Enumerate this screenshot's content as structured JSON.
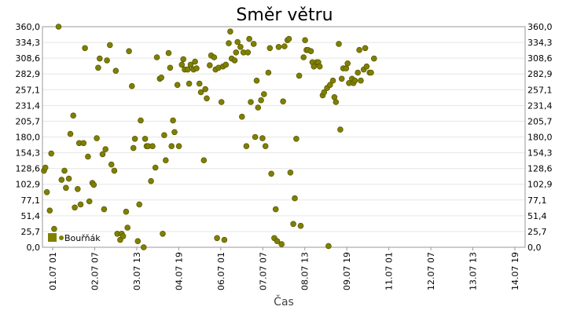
{
  "chart_data": {
    "type": "scatter",
    "title": "Směr větru",
    "xlabel": "Čas",
    "ylabel": "°",
    "ylim": [
      0,
      360
    ],
    "y_ticks": [
      "0,0",
      "25,7",
      "51,4",
      "77,1",
      "102,9",
      "128,6",
      "154,3",
      "180,0",
      "205,7",
      "231,4",
      "257,1",
      "282,9",
      "308,6",
      "334,3",
      "360,0"
    ],
    "x_ticks": [
      "01.07 01",
      "02.07 07",
      "03.07 13",
      "04.07 19",
      "06.07 01",
      "07.07 07",
      "08.07 13",
      "09.07 19",
      "11.07 01",
      "12.07 07",
      "13.07 13",
      "14.07 19"
    ],
    "xlim": [
      0,
      329
    ],
    "grid": true,
    "legend_position": "bottom-left",
    "marker_color": "#808000",
    "series": [
      {
        "name": "Bouřňák",
        "points": [
          [
            1,
            125
          ],
          [
            2,
            130
          ],
          [
            3,
            90
          ],
          [
            5,
            60
          ],
          [
            6,
            153
          ],
          [
            8,
            30
          ],
          [
            11,
            360
          ],
          [
            13,
            110
          ],
          [
            15,
            125
          ],
          [
            16,
            97
          ],
          [
            18,
            112
          ],
          [
            19,
            185
          ],
          [
            21,
            215
          ],
          [
            22,
            65
          ],
          [
            24,
            95
          ],
          [
            25,
            170
          ],
          [
            26,
            70
          ],
          [
            28,
            170
          ],
          [
            29,
            325
          ],
          [
            31,
            148
          ],
          [
            32,
            75
          ],
          [
            34,
            105
          ],
          [
            35,
            102
          ],
          [
            37,
            178
          ],
          [
            38,
            293
          ],
          [
            39,
            308
          ],
          [
            41,
            152
          ],
          [
            42,
            62
          ],
          [
            43,
            160
          ],
          [
            44,
            305
          ],
          [
            46,
            330
          ],
          [
            47,
            135
          ],
          [
            49,
            125
          ],
          [
            50,
            288
          ],
          [
            51,
            22
          ],
          [
            53,
            12
          ],
          [
            54,
            22
          ],
          [
            55,
            18
          ],
          [
            57,
            58
          ],
          [
            58,
            32
          ],
          [
            59,
            320
          ],
          [
            61,
            263
          ],
          [
            62,
            162
          ],
          [
            63,
            177
          ],
          [
            65,
            10
          ],
          [
            66,
            70
          ],
          [
            67,
            207
          ],
          [
            69,
            0
          ],
          [
            70,
            177
          ],
          [
            71,
            165
          ],
          [
            72,
            165
          ],
          [
            74,
            108
          ],
          [
            75,
            165
          ],
          [
            77,
            130
          ],
          [
            78,
            310
          ],
          [
            80,
            275
          ],
          [
            81,
            277
          ],
          [
            82,
            22
          ],
          [
            83,
            183
          ],
          [
            84,
            142
          ],
          [
            86,
            317
          ],
          [
            87,
            293
          ],
          [
            88,
            165
          ],
          [
            89,
            207
          ],
          [
            90,
            188
          ],
          [
            92,
            265
          ],
          [
            93,
            165
          ],
          [
            95,
            298
          ],
          [
            96,
            307
          ],
          [
            97,
            290
          ],
          [
            99,
            290
          ],
          [
            100,
            267
          ],
          [
            101,
            298
          ],
          [
            103,
            290
          ],
          [
            104,
            303
          ],
          [
            105,
            292
          ],
          [
            107,
            267
          ],
          [
            108,
            253
          ],
          [
            110,
            142
          ],
          [
            111,
            258
          ],
          [
            112,
            243
          ],
          [
            114,
            297
          ],
          [
            115,
            313
          ],
          [
            117,
            310
          ],
          [
            118,
            290
          ],
          [
            119,
            15
          ],
          [
            120,
            293
          ],
          [
            122,
            237
          ],
          [
            123,
            295
          ],
          [
            124,
            12
          ],
          [
            125,
            298
          ],
          [
            127,
            333
          ],
          [
            128,
            352
          ],
          [
            129,
            308
          ],
          [
            131,
            305
          ],
          [
            132,
            318
          ],
          [
            133,
            335
          ],
          [
            135,
            327
          ],
          [
            136,
            213
          ],
          [
            137,
            318
          ],
          [
            139,
            165
          ],
          [
            140,
            318
          ],
          [
            141,
            340
          ],
          [
            142,
            237
          ],
          [
            144,
            332
          ],
          [
            145,
            180
          ],
          [
            146,
            272
          ],
          [
            147,
            228
          ],
          [
            149,
            240
          ],
          [
            150,
            178
          ],
          [
            151,
            250
          ],
          [
            152,
            165
          ],
          [
            154,
            285
          ],
          [
            155,
            325
          ],
          [
            156,
            120
          ],
          [
            158,
            15
          ],
          [
            159,
            62
          ],
          [
            160,
            10
          ],
          [
            161,
            327
          ],
          [
            163,
            5
          ],
          [
            164,
            238
          ],
          [
            165,
            328
          ],
          [
            167,
            338
          ],
          [
            168,
            340
          ],
          [
            169,
            122
          ],
          [
            171,
            38
          ],
          [
            172,
            80
          ],
          [
            173,
            177
          ],
          [
            175,
            280
          ],
          [
            176,
            35
          ],
          [
            178,
            310
          ],
          [
            179,
            338
          ],
          [
            180,
            322
          ],
          [
            181,
            322
          ],
          [
            183,
            320
          ],
          [
            184,
            302
          ],
          [
            185,
            295
          ],
          [
            187,
            302
          ],
          [
            188,
            302
          ],
          [
            189,
            295
          ],
          [
            191,
            248
          ],
          [
            192,
            253
          ],
          [
            194,
            260
          ],
          [
            195,
            2
          ],
          [
            196,
            265
          ],
          [
            198,
            272
          ],
          [
            199,
            245
          ],
          [
            200,
            237
          ],
          [
            202,
            332
          ],
          [
            203,
            192
          ],
          [
            204,
            275
          ],
          [
            205,
            292
          ],
          [
            207,
            292
          ],
          [
            208,
            300
          ],
          [
            209,
            268
          ],
          [
            211,
            275
          ],
          [
            212,
            268
          ],
          [
            213,
            272
          ],
          [
            215,
            285
          ],
          [
            216,
            322
          ],
          [
            217,
            272
          ],
          [
            219,
            290
          ],
          [
            220,
            325
          ],
          [
            221,
            295
          ],
          [
            223,
            285
          ],
          [
            224,
            285
          ],
          [
            226,
            308
          ]
        ]
      }
    ]
  }
}
